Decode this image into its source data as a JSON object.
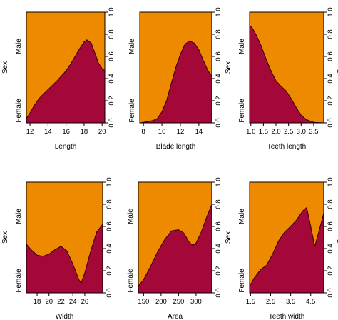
{
  "colors": {
    "male": "#EE8A00",
    "female": "#A30839",
    "axis": "#000000"
  },
  "chart_data": [
    {
      "type": "area",
      "title": "",
      "xlabel": "Length",
      "ylabel": "Sex",
      "categories": [
        "Female",
        "Male"
      ],
      "xlim": [
        11.6,
        20.3
      ],
      "ylim": [
        0,
        1
      ],
      "xticks": [
        "12",
        "14",
        "16",
        "18",
        "20"
      ],
      "yticks": [
        "0.0",
        "0.2",
        "0.4",
        "0.6",
        "0.8",
        "1.0"
      ],
      "series": [
        {
          "name": "Female",
          "values": [
            [
              11.6,
              0.04
            ],
            [
              12,
              0.09
            ],
            [
              12.5,
              0.16
            ],
            [
              13,
              0.22
            ],
            [
              14,
              0.3
            ],
            [
              15,
              0.38
            ],
            [
              16,
              0.47
            ],
            [
              16.5,
              0.53
            ],
            [
              17,
              0.6
            ],
            [
              17.5,
              0.67
            ],
            [
              18,
              0.73
            ],
            [
              18.3,
              0.75
            ],
            [
              18.8,
              0.72
            ],
            [
              19.2,
              0.63
            ],
            [
              19.6,
              0.54
            ],
            [
              20.0,
              0.49
            ],
            [
              20.3,
              0.47
            ]
          ]
        }
      ]
    },
    {
      "type": "area",
      "title": "",
      "xlabel": "Blade length",
      "ylabel": "Sex",
      "categories": [
        "Female",
        "Male"
      ],
      "xlim": [
        7.6,
        15.4
      ],
      "ylim": [
        0,
        1
      ],
      "xticks": [
        "8",
        "10",
        "12",
        "14"
      ],
      "yticks": [
        "0.0",
        "0.2",
        "0.4",
        "0.6",
        "0.8",
        "1.0"
      ],
      "series": [
        {
          "name": "Female",
          "values": [
            [
              7.6,
              0.0
            ],
            [
              8,
              0.005
            ],
            [
              9,
              0.02
            ],
            [
              9.5,
              0.04
            ],
            [
              10,
              0.1
            ],
            [
              10.5,
              0.2
            ],
            [
              11,
              0.35
            ],
            [
              11.5,
              0.5
            ],
            [
              12,
              0.62
            ],
            [
              12.5,
              0.71
            ],
            [
              13,
              0.74
            ],
            [
              13.5,
              0.72
            ],
            [
              14,
              0.66
            ],
            [
              14.5,
              0.56
            ],
            [
              15,
              0.47
            ],
            [
              15.4,
              0.42
            ]
          ]
        }
      ]
    },
    {
      "type": "area",
      "title": "",
      "xlabel": "Teeth length",
      "ylabel": "Sex",
      "categories": [
        "Female",
        "Male"
      ],
      "xlim": [
        0.95,
        3.9
      ],
      "ylim": [
        0,
        1
      ],
      "xticks": [
        "1.0",
        "1.5",
        "2.0",
        "2.5",
        "3.0",
        "3.5"
      ],
      "yticks": [
        "0.0",
        "0.2",
        "0.4",
        "0.6",
        "0.8",
        "1.0"
      ],
      "series": [
        {
          "name": "Female",
          "values": [
            [
              0.95,
              0.88
            ],
            [
              1.05,
              0.86
            ],
            [
              1.2,
              0.8
            ],
            [
              1.4,
              0.7
            ],
            [
              1.6,
              0.58
            ],
            [
              1.8,
              0.47
            ],
            [
              2.0,
              0.38
            ],
            [
              2.2,
              0.33
            ],
            [
              2.4,
              0.29
            ],
            [
              2.6,
              0.22
            ],
            [
              2.8,
              0.14
            ],
            [
              3.0,
              0.07
            ],
            [
              3.2,
              0.03
            ],
            [
              3.5,
              0.005
            ],
            [
              3.9,
              0.0
            ]
          ]
        }
      ]
    },
    {
      "type": "area",
      "title": "",
      "xlabel": "Width",
      "ylabel": "Sex",
      "categories": [
        "Female",
        "Male"
      ],
      "xlim": [
        16.2,
        29.0
      ],
      "ylim": [
        0,
        1
      ],
      "xticks": [
        "18",
        "20",
        "22",
        "24",
        "26"
      ],
      "yticks": [
        "0.0",
        "0.2",
        "0.4",
        "0.6",
        "0.8",
        "1.0"
      ],
      "series": [
        {
          "name": "Female",
          "values": [
            [
              16.2,
              0.44
            ],
            [
              17,
              0.39
            ],
            [
              18,
              0.34
            ],
            [
              19,
              0.33
            ],
            [
              20,
              0.35
            ],
            [
              21,
              0.39
            ],
            [
              22,
              0.42
            ],
            [
              23,
              0.38
            ],
            [
              24,
              0.26
            ],
            [
              25,
              0.12
            ],
            [
              25.4,
              0.09
            ],
            [
              26,
              0.18
            ],
            [
              27,
              0.38
            ],
            [
              28,
              0.55
            ],
            [
              29,
              0.62
            ]
          ]
        }
      ]
    },
    {
      "type": "area",
      "title": "",
      "xlabel": "Area",
      "ylabel": "Sex",
      "categories": [
        "Female",
        "Male"
      ],
      "xlim": [
        135,
        345
      ],
      "ylim": [
        0,
        1
      ],
      "xticks": [
        "150",
        "200",
        "250",
        "300"
      ],
      "yticks": [
        "0.0",
        "0.2",
        "0.4",
        "0.6",
        "0.8",
        "1.0"
      ],
      "series": [
        {
          "name": "Female",
          "values": [
            [
              135,
              0.06
            ],
            [
              150,
              0.12
            ],
            [
              170,
              0.24
            ],
            [
              190,
              0.37
            ],
            [
              210,
              0.48
            ],
            [
              230,
              0.56
            ],
            [
              250,
              0.57
            ],
            [
              265,
              0.54
            ],
            [
              280,
              0.46
            ],
            [
              290,
              0.43
            ],
            [
              300,
              0.45
            ],
            [
              315,
              0.55
            ],
            [
              330,
              0.68
            ],
            [
              345,
              0.8
            ]
          ]
        }
      ]
    },
    {
      "type": "area",
      "title": "",
      "xlabel": "Teeth width",
      "ylabel": "Sex",
      "categories": [
        "Female",
        "Male"
      ],
      "xlim": [
        1.45,
        5.15
      ],
      "ylim": [
        0,
        1
      ],
      "xticks": [
        "1.5",
        "2.5",
        "3.5",
        "4.5"
      ],
      "yticks": [
        "0.0",
        "0.2",
        "0.4",
        "0.6",
        "0.8",
        "1.0"
      ],
      "series": [
        {
          "name": "Female",
          "values": [
            [
              1.45,
              0.06
            ],
            [
              1.7,
              0.14
            ],
            [
              2.0,
              0.21
            ],
            [
              2.3,
              0.25
            ],
            [
              2.6,
              0.35
            ],
            [
              2.9,
              0.47
            ],
            [
              3.2,
              0.55
            ],
            [
              3.5,
              0.6
            ],
            [
              3.8,
              0.66
            ],
            [
              4.1,
              0.74
            ],
            [
              4.3,
              0.77
            ],
            [
              4.5,
              0.6
            ],
            [
              4.7,
              0.42
            ],
            [
              4.9,
              0.55
            ],
            [
              5.15,
              0.72
            ]
          ]
        }
      ]
    }
  ]
}
